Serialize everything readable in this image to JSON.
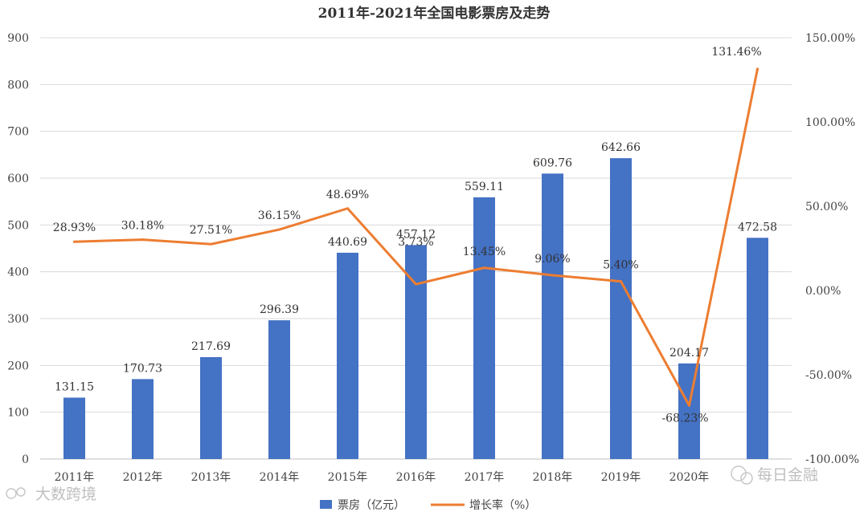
{
  "chart_data": {
    "type": "bar",
    "title": "2011年-2021年全国电影票房及走势",
    "categories": [
      "2011年",
      "2012年",
      "2013年",
      "2014年",
      "2015年",
      "2016年",
      "2017年",
      "2018年",
      "2019年",
      "2020年",
      ""
    ],
    "series": [
      {
        "name": "票房（亿元）",
        "type": "bar",
        "axis": "left",
        "color": "#4472c4",
        "values": [
          131.15,
          170.73,
          217.69,
          296.39,
          440.69,
          457.12,
          559.11,
          609.76,
          642.66,
          204.17,
          472.58
        ],
        "labels": [
          "131.15",
          "170.73",
          "217.69",
          "296.39",
          "440.69",
          "457.12",
          "559.11",
          "609.76",
          "642.66",
          "204.17",
          "472.58"
        ]
      },
      {
        "name": "增长率（%）",
        "type": "line",
        "axis": "right",
        "color": "#ed7d31",
        "values": [
          28.93,
          30.18,
          27.51,
          36.15,
          48.69,
          3.73,
          13.45,
          9.06,
          5.4,
          -68.23,
          131.46
        ],
        "labels": [
          "28.93%",
          "30.18%",
          "27.51%",
          "36.15%",
          "48.69%",
          "3.73%",
          "13.45%",
          "9.06%",
          "5.40%",
          "-68.23%",
          "131.46%"
        ]
      }
    ],
    "y_left": {
      "range": [
        0,
        900
      ],
      "ticks": [
        "0",
        "100",
        "200",
        "300",
        "400",
        "500",
        "600",
        "700",
        "800",
        "900"
      ]
    },
    "y_right": {
      "range": [
        -100,
        150
      ],
      "ticks": [
        "-100.00%",
        "-50.00%",
        "0.00%",
        "50.00%",
        "100.00%",
        "150.00%"
      ]
    },
    "grid": true,
    "legend_position": "bottom"
  },
  "watermarks": {
    "bottom_left": "大数跨境",
    "bottom_right": "每日金融"
  },
  "colors": {
    "gridline": "#d9d9d9",
    "axis_line": "#bfbfbf"
  }
}
